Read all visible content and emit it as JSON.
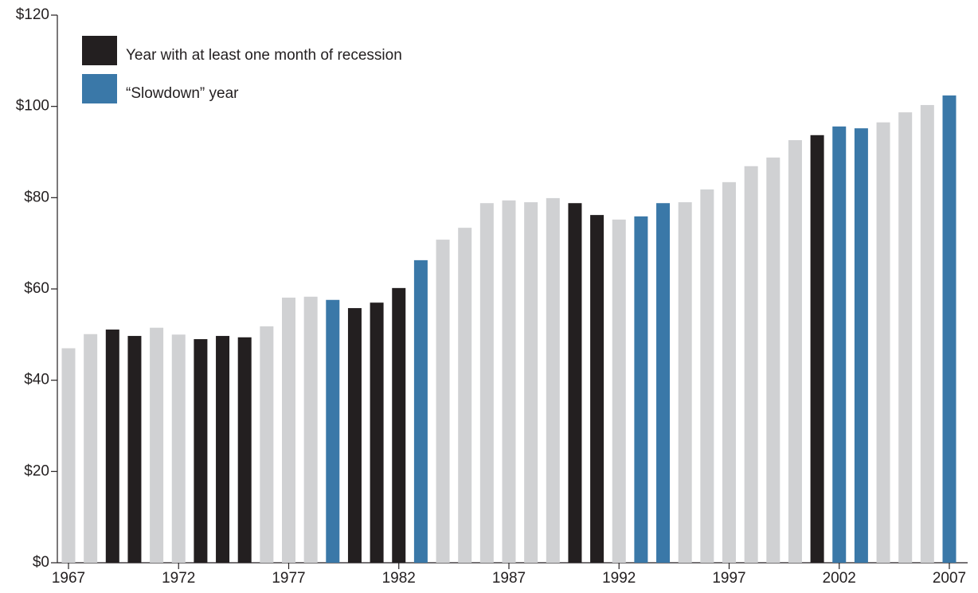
{
  "chart_data": {
    "type": "bar",
    "categories": [
      "1967",
      null,
      null,
      null,
      null,
      "1972",
      null,
      null,
      null,
      null,
      "1977",
      null,
      null,
      null,
      null,
      "1982",
      null,
      null,
      null,
      null,
      "1987",
      null,
      null,
      null,
      null,
      "1992",
      null,
      null,
      null,
      null,
      "1997",
      null,
      null,
      null,
      null,
      "2002",
      null,
      null,
      null,
      null,
      "2007"
    ],
    "values": [
      47,
      50.1,
      51.1,
      49.7,
      51.5,
      50,
      49,
      49.7,
      49.4,
      51.8,
      58.1,
      58.3,
      57.6,
      55.8,
      57,
      60.2,
      66.3,
      70.8,
      73.4,
      78.8,
      79.4,
      79,
      79.9,
      78.8,
      76.2,
      75.2,
      75.9,
      78.8,
      79,
      81.8,
      83.4,
      86.9,
      88.8,
      92.6,
      93.7,
      95.6,
      95.2,
      96.5,
      98.7,
      100.3,
      102.4
    ],
    "colors": [
      "#d0d1d3",
      "#d0d1d3",
      "#231f20",
      "#231f20",
      "#d0d1d3",
      "#d0d1d3",
      "#231f20",
      "#231f20",
      "#231f20",
      "#d0d1d3",
      "#d0d1d3",
      "#d0d1d3",
      "#3a78a8",
      "#231f20",
      "#231f20",
      "#231f20",
      "#3a78a8",
      "#d0d1d3",
      "#d0d1d3",
      "#d0d1d3",
      "#d0d1d3",
      "#d0d1d3",
      "#d0d1d3",
      "#231f20",
      "#231f20",
      "#d0d1d3",
      "#3a78a8",
      "#3a78a8",
      "#d0d1d3",
      "#d0d1d3",
      "#d0d1d3",
      "#d0d1d3",
      "#d0d1d3",
      "#d0d1d3",
      "#231f20",
      "#3a78a8",
      "#3a78a8",
      "#d0d1d3",
      "#d0d1d3",
      "#d0d1d3",
      "#3a78a8"
    ],
    "legend": [
      {
        "name": "Year with at least one month of recession",
        "color": "#231f20"
      },
      {
        "name": "“Slowdown” year",
        "color": "#3a78a8"
      }
    ],
    "legend_position": "upper left",
    "ylim": [
      0,
      120
    ],
    "yticks": [
      {
        "value": 0,
        "label": "$0"
      },
      {
        "value": 20,
        "label": "$20"
      },
      {
        "value": 40,
        "label": "$40"
      },
      {
        "value": 60,
        "label": "$60"
      },
      {
        "value": 80,
        "label": "$80"
      },
      {
        "value": 100,
        "label": "$100"
      },
      {
        "value": 120,
        "label": "$120"
      }
    ],
    "grid": false
  }
}
